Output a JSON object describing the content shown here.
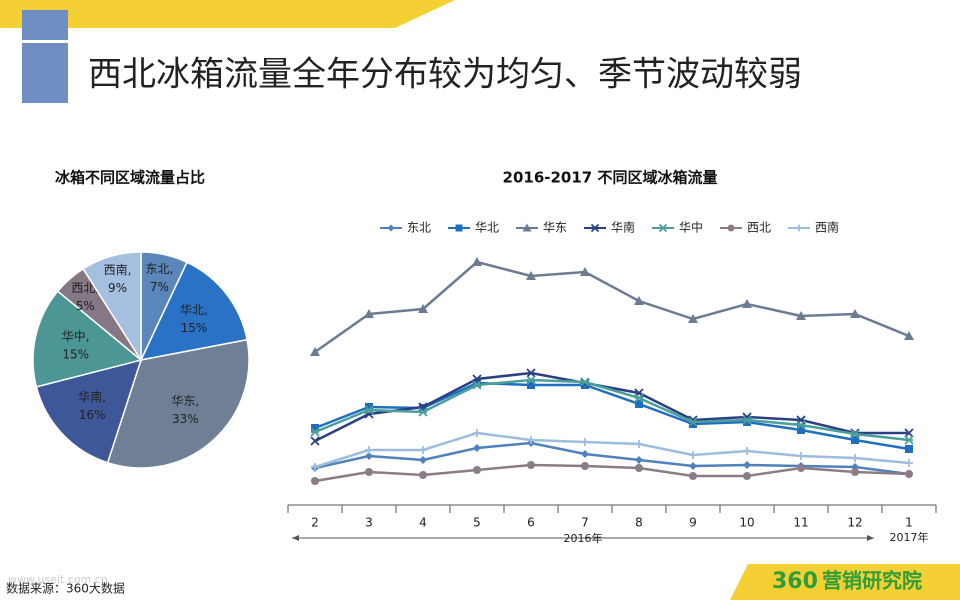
{
  "header": {
    "title": "西北冰箱流量全年分布较为均匀、季节波动较弱"
  },
  "footer": {
    "source": "数据来源：360大数据",
    "watermark": "www.useit.com.cn",
    "logo_number": "360",
    "logo_text": "营销研究院"
  },
  "chart_data": [
    {
      "type": "pie",
      "title": "冰箱不同区域流量占比",
      "categories": [
        "东北",
        "华北",
        "华东",
        "华南",
        "华中",
        "西北",
        "西南"
      ],
      "values": [
        7,
        15,
        33,
        16,
        15,
        5,
        9
      ],
      "value_labels": [
        "东北, 7%",
        "华北, 15%",
        "华东, 33%",
        "华南, 16%",
        "华中, 15%",
        "西北, 5%",
        "西南, 9%"
      ],
      "colors": [
        "#5a86b9",
        "#2a72c6",
        "#6f7f96",
        "#3e5799",
        "#4c9795",
        "#857884",
        "#a5bfe0"
      ]
    },
    {
      "type": "line",
      "title": "2016-2017 不同区域冰箱流量",
      "categories": [
        "2",
        "3",
        "4",
        "5",
        "6",
        "7",
        "8",
        "9",
        "10",
        "11",
        "12",
        "1"
      ],
      "x_group_labels": [
        "2016年",
        "2017年"
      ],
      "ylim": [
        0,
        250
      ],
      "legend": "top",
      "series": [
        {
          "name": "东北",
          "color": "#4f81bd",
          "marker": "diamond",
          "values": [
            37,
            49,
            45,
            57,
            62,
            51,
            45,
            39,
            40,
            39,
            38,
            31
          ]
        },
        {
          "name": "华北",
          "color": "#1f6fc0",
          "marker": "square",
          "values": [
            77,
            98,
            97,
            122,
            120,
            120,
            101,
            81,
            83,
            75,
            65,
            56
          ]
        },
        {
          "name": "华东",
          "color": "#6b7b93",
          "marker": "triangle",
          "values": [
            153,
            191,
            196,
            243,
            229,
            233,
            204,
            186,
            201,
            189,
            191,
            169
          ]
        },
        {
          "name": "华南",
          "color": "#2b3f86",
          "marker": "x",
          "values": [
            64,
            91,
            98,
            126,
            132,
            122,
            112,
            85,
            88,
            85,
            72,
            72
          ]
        },
        {
          "name": "华中",
          "color": "#4a9f9a",
          "marker": "star",
          "values": [
            73,
            95,
            93,
            120,
            125,
            123,
            107,
            83,
            85,
            80,
            71,
            65
          ]
        },
        {
          "name": "西北",
          "color": "#8c7c88",
          "marker": "circle",
          "values": [
            24,
            33,
            30,
            35,
            40,
            39,
            37,
            29,
            29,
            37,
            33,
            31
          ]
        },
        {
          "name": "西南",
          "color": "#9dbde0",
          "marker": "plus",
          "values": [
            38,
            55,
            55,
            72,
            65,
            63,
            61,
            50,
            54,
            49,
            47,
            42
          ]
        }
      ]
    }
  ]
}
